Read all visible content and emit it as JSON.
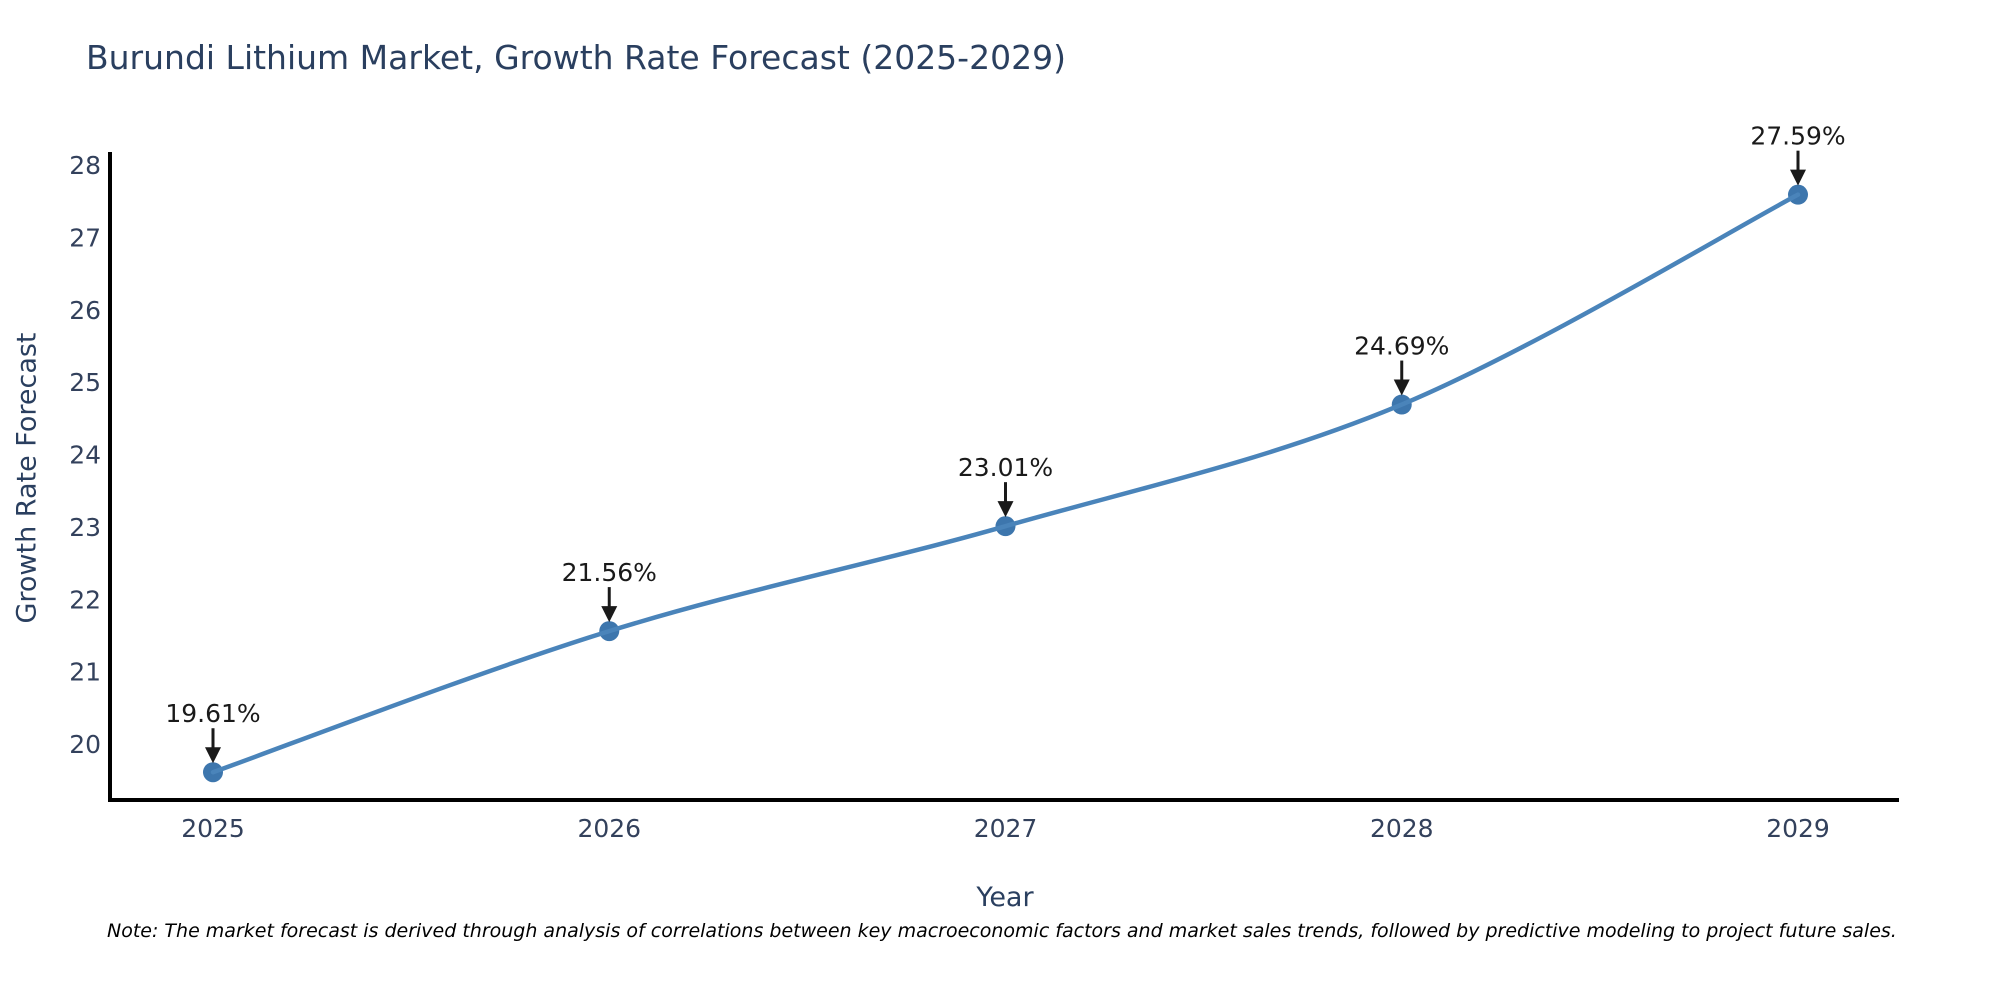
{
  "chart_data": {
    "type": "line",
    "title": "Burundi Lithium Market, Growth Rate Forecast (2025-2029)",
    "xlabel": "Year",
    "ylabel": "Growth Rate Forecast",
    "categories": [
      "2025",
      "2026",
      "2027",
      "2028",
      "2029"
    ],
    "series": [
      {
        "name": "Growth Rate Forecast",
        "values": [
          19.61,
          21.56,
          23.01,
          24.69,
          27.59
        ],
        "point_labels": [
          "19.61%",
          "21.56%",
          "23.01%",
          "24.69%",
          "27.59%"
        ]
      }
    ],
    "yticks": [
      20,
      21,
      22,
      23,
      24,
      25,
      26,
      27,
      28
    ],
    "ylim": [
      19.2,
      28.2
    ],
    "grid": false,
    "legend": "none",
    "line_shape": "spline",
    "colors": {
      "line": "#4a84ba",
      "marker": "#3d76ad",
      "axis": "#000000",
      "title": "#2a3f5f",
      "tick": "#33415c",
      "annotation": "#1a1a1a"
    }
  },
  "footnote": "Note: The market forecast is derived through analysis of correlations between key macroeconomic factors and market sales trends, followed by predictive modeling to project future sales."
}
